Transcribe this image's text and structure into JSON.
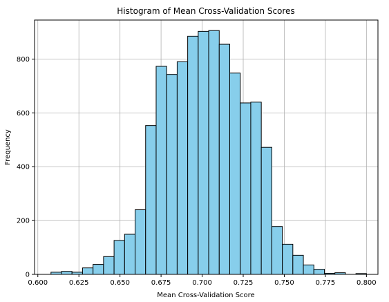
{
  "chart_data": {
    "type": "bar",
    "title": "Histogram of Mean Cross-Validation Scores",
    "xlabel": "Mean Cross-Validation Score",
    "ylabel": "Frequency",
    "xlim": [
      0.598,
      0.807
    ],
    "ylim": [
      0,
      945
    ],
    "xticks": [
      0.6,
      0.625,
      0.65,
      0.675,
      0.7,
      0.725,
      0.75,
      0.775,
      0.8
    ],
    "xtick_labels": [
      "0.600",
      "0.625",
      "0.650",
      "0.675",
      "0.700",
      "0.725",
      "0.750",
      "0.775",
      "0.800"
    ],
    "yticks": [
      0,
      200,
      400,
      600,
      800
    ],
    "ytick_labels": [
      "0",
      "200",
      "400",
      "600",
      "800"
    ],
    "grid": true,
    "bar_color": "#87ceeb",
    "edge_color": "#000000",
    "bins": [
      {
        "x0": 0.608,
        "x1": 0.6144,
        "count": 8
      },
      {
        "x0": 0.6144,
        "x1": 0.6208,
        "count": 11
      },
      {
        "x0": 0.6208,
        "x1": 0.6272,
        "count": 8
      },
      {
        "x0": 0.6272,
        "x1": 0.6336,
        "count": 24
      },
      {
        "x0": 0.6336,
        "x1": 0.64,
        "count": 37
      },
      {
        "x0": 0.64,
        "x1": 0.6464,
        "count": 66
      },
      {
        "x0": 0.6464,
        "x1": 0.6528,
        "count": 126
      },
      {
        "x0": 0.6528,
        "x1": 0.6592,
        "count": 149
      },
      {
        "x0": 0.6592,
        "x1": 0.6656,
        "count": 240
      },
      {
        "x0": 0.6656,
        "x1": 0.672,
        "count": 553
      },
      {
        "x0": 0.672,
        "x1": 0.6784,
        "count": 773
      },
      {
        "x0": 0.6784,
        "x1": 0.6848,
        "count": 743
      },
      {
        "x0": 0.6848,
        "x1": 0.6912,
        "count": 790
      },
      {
        "x0": 0.6912,
        "x1": 0.6976,
        "count": 885
      },
      {
        "x0": 0.6976,
        "x1": 0.704,
        "count": 903
      },
      {
        "x0": 0.704,
        "x1": 0.7104,
        "count": 906
      },
      {
        "x0": 0.7104,
        "x1": 0.7168,
        "count": 855
      },
      {
        "x0": 0.7168,
        "x1": 0.7232,
        "count": 748
      },
      {
        "x0": 0.7232,
        "x1": 0.7296,
        "count": 637
      },
      {
        "x0": 0.7296,
        "x1": 0.736,
        "count": 640
      },
      {
        "x0": 0.736,
        "x1": 0.7424,
        "count": 472
      },
      {
        "x0": 0.7424,
        "x1": 0.7488,
        "count": 178
      },
      {
        "x0": 0.7488,
        "x1": 0.7552,
        "count": 112
      },
      {
        "x0": 0.7552,
        "x1": 0.7616,
        "count": 71
      },
      {
        "x0": 0.7616,
        "x1": 0.768,
        "count": 35
      },
      {
        "x0": 0.768,
        "x1": 0.7744,
        "count": 19
      },
      {
        "x0": 0.7744,
        "x1": 0.7808,
        "count": 4
      },
      {
        "x0": 0.7808,
        "x1": 0.7872,
        "count": 6
      },
      {
        "x0": 0.7872,
        "x1": 0.7936,
        "count": 0
      },
      {
        "x0": 0.7936,
        "x1": 0.8,
        "count": 3
      }
    ]
  }
}
